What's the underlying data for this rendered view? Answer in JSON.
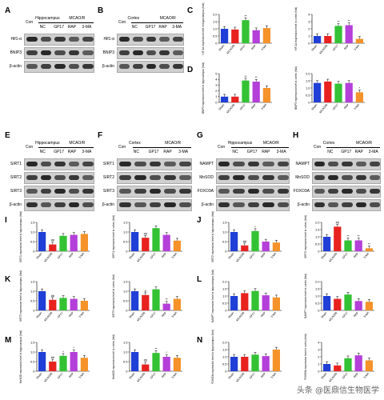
{
  "panel_letters": [
    "A",
    "B",
    "C",
    "D",
    "E",
    "F",
    "G",
    "H",
    "I",
    "J",
    "K",
    "L",
    "M",
    "N"
  ],
  "blots": {
    "A": {
      "region": "Hippocampus",
      "model": "MCAO/R",
      "lanes": [
        "Con",
        "NC",
        "GP17",
        "RAP",
        "3-MA"
      ],
      "rows": [
        "Hif1-α",
        "BNIP3",
        "β-actin"
      ]
    },
    "B": {
      "region": "Cortex",
      "model": "MCAO/R",
      "lanes": [
        "Con",
        "NC",
        "GP17",
        "RAP",
        "3-MA"
      ],
      "rows": [
        "Hif1-α",
        "BNIP3",
        "β-actin"
      ]
    },
    "E": {
      "region": "Hippocampus",
      "model": "MCAO/R",
      "lanes": [
        "Con",
        "NC",
        "GP17",
        "RAP",
        "3-MA"
      ],
      "rows": [
        "SIRT1",
        "SIRT2",
        "SIRT3",
        "β-actin"
      ]
    },
    "F": {
      "region": "Cortex",
      "model": "MCAO/R",
      "lanes": [
        "Con",
        "NC",
        "GP17",
        "RAP",
        "3-MA"
      ],
      "rows": [
        "SIRT1",
        "SIRT2",
        "SIRT3",
        "β-actin"
      ]
    },
    "G": {
      "region": "Hippocampus",
      "model": "MCAO/R",
      "lanes": [
        "Con",
        "NC",
        "GP17",
        "RAP",
        "3-MA"
      ],
      "rows": [
        "NAMPT",
        "MnSOD",
        "FOXO3A",
        "β-actin"
      ]
    },
    "H": {
      "region": "Cortex",
      "model": "MCAO/R",
      "lanes": [
        "Con",
        "NC",
        "GP17",
        "RAP",
        "3-MA"
      ],
      "rows": [
        "NAMPT",
        "MnSOD",
        "FOXO3A",
        "β-actin"
      ]
    }
  },
  "colors": [
    "#1f3fd6",
    "#e8221f",
    "#33c233",
    "#b43fd9",
    "#f5922a"
  ],
  "chart_data": [
    {
      "type": "bar",
      "panel": "C",
      "ylabel": "HIF-1α expression level in hippocampus (fold)",
      "categories": [
        "Sham",
        "MCAO/R",
        "GP17",
        "RAP",
        "3-MA"
      ],
      "values": [
        1.0,
        0.95,
        1.6,
        0.9,
        1.05
      ],
      "ylim": [
        0,
        2
      ],
      "yticks": [
        "0",
        "0.5",
        "1.0",
        "1.5",
        "2.0"
      ],
      "annotations": [
        "",
        "",
        "**",
        "",
        ""
      ]
    },
    {
      "type": "bar",
      "panel": "C",
      "ylabel": "HIF-1α expression level in cortex (fold)",
      "categories": [
        "Sham",
        "MCAO/R",
        "GP17",
        "RAP",
        "3-MA"
      ],
      "values": [
        1.0,
        1.0,
        2.4,
        2.5,
        0.6
      ],
      "ylim": [
        0,
        4
      ],
      "yticks": [
        "0",
        "1",
        "2",
        "3",
        "4"
      ],
      "annotations": [
        "",
        "",
        "**",
        "**",
        ""
      ]
    },
    {
      "type": "bar",
      "panel": "D",
      "ylabel": "BNIP3 expression level in hippocampus (fold)",
      "categories": [
        "Sham",
        "MCAO/R",
        "GP17",
        "RAP",
        "3-MA"
      ],
      "values": [
        1.0,
        1.0,
        3.8,
        3.6,
        2.5
      ],
      "ylim": [
        0,
        5
      ],
      "yticks": [
        "0",
        "1",
        "2",
        "3",
        "4",
        "5"
      ],
      "annotations": [
        "",
        "",
        "**",
        "**",
        ""
      ]
    },
    {
      "type": "bar",
      "panel": "D",
      "ylabel": "BNIP3 expression level in cortex (fold)",
      "categories": [
        "Sham",
        "MCAO/R",
        "GP17",
        "RAP",
        "3-MA"
      ],
      "values": [
        1.35,
        1.45,
        1.3,
        1.35,
        0.7
      ],
      "ylim": [
        0,
        2
      ],
      "yticks": [
        "0",
        "0.5",
        "1.0",
        "1.5",
        "2.0"
      ],
      "annotations": [
        "",
        "",
        "",
        "",
        "*"
      ]
    },
    {
      "type": "bar",
      "panel": "I",
      "ylabel": "SIRT1 expression level in hippocampus (fold)",
      "categories": [
        "Sham",
        "MCAO/R",
        "GP17",
        "RAP",
        "3-MA"
      ],
      "values": [
        1.0,
        0.35,
        0.8,
        0.85,
        0.9
      ],
      "ylim": [
        0,
        1.5
      ],
      "yticks": [
        "0",
        "0.5",
        "1.0",
        "1.5"
      ],
      "annotations": [
        "",
        "##",
        "",
        "",
        ""
      ]
    },
    {
      "type": "bar",
      "panel": "I",
      "ylabel": "SIRT1 expression level in cortex (fold)",
      "categories": [
        "Sham",
        "MCAO/R",
        "GP17",
        "RAP",
        "3-MA"
      ],
      "values": [
        1.0,
        0.7,
        1.2,
        0.85,
        0.55
      ],
      "ylim": [
        0,
        1.5
      ],
      "yticks": [
        "0",
        "0.5",
        "1.0",
        "1.5"
      ],
      "annotations": [
        "",
        "##",
        "",
        "",
        ""
      ]
    },
    {
      "type": "bar",
      "panel": "J",
      "ylabel": "SIRT2 expression level in hippocampus (fold)",
      "categories": [
        "Sham",
        "MCAO/R",
        "GP17",
        "RAP",
        "3-MA"
      ],
      "values": [
        1.0,
        0.3,
        1.05,
        0.5,
        0.45
      ],
      "ylim": [
        0,
        1.5
      ],
      "yticks": [
        "0",
        "0.5",
        "1.0",
        "1.5"
      ],
      "annotations": [
        "",
        "##",
        "*",
        "",
        ""
      ]
    },
    {
      "type": "bar",
      "panel": "J",
      "ylabel": "SIRT2 expression level in cortex (fold)",
      "categories": [
        "Sham",
        "MCAO/R",
        "GP17",
        "RAP",
        "3-MA"
      ],
      "values": [
        1.0,
        1.7,
        0.75,
        0.75,
        0.2
      ],
      "ylim": [
        0,
        2
      ],
      "yticks": [
        "0",
        "0.5",
        "1.0",
        "1.5",
        "2.0"
      ],
      "annotations": [
        "",
        "##",
        "**",
        "**",
        "**"
      ]
    },
    {
      "type": "bar",
      "panel": "K",
      "ylabel": "SIRT3 expression level in hippocampus (fold)",
      "categories": [
        "Sham",
        "MCAO/R",
        "GP17",
        "RAP",
        "3-MA"
      ],
      "values": [
        1.0,
        0.55,
        0.65,
        0.6,
        0.5
      ],
      "ylim": [
        0,
        1.5
      ],
      "yticks": [
        "0",
        "0.5",
        "1.0",
        "1.5"
      ],
      "annotations": [
        "",
        "##",
        "",
        "",
        ""
      ]
    },
    {
      "type": "bar",
      "panel": "K",
      "ylabel": "SIRT3 expression level in cortex (fold)",
      "categories": [
        "Sham",
        "MCAO/R",
        "GP17",
        "RAP",
        "3-MA"
      ],
      "values": [
        1.0,
        0.8,
        1.1,
        0.35,
        0.6
      ],
      "ylim": [
        0,
        1.5
      ],
      "yticks": [
        "0",
        "0.5",
        "1.0",
        "1.5"
      ],
      "annotations": [
        "",
        "#",
        "",
        "**",
        ""
      ]
    },
    {
      "type": "bar",
      "panel": "L",
      "ylabel": "NAMPT expression level in hippocampus (fold)",
      "categories": [
        "Sham",
        "MCAO/R",
        "GP17",
        "RAP",
        "3-MA"
      ],
      "values": [
        1.0,
        1.2,
        1.35,
        1.05,
        0.9
      ],
      "ylim": [
        0,
        2
      ],
      "yticks": [
        "0",
        "0.5",
        "1.0",
        "1.5",
        "2.0"
      ],
      "annotations": [
        "",
        "",
        "",
        "",
        ""
      ]
    },
    {
      "type": "bar",
      "panel": "L",
      "ylabel": "NAMPT expression level in cortex (fold)",
      "categories": [
        "Sham",
        "MCAO/R",
        "GP17",
        "RAP",
        "3-MA"
      ],
      "values": [
        1.0,
        0.8,
        1.1,
        0.65,
        0.6
      ],
      "ylim": [
        0,
        2
      ],
      "yticks": [
        "0",
        "0.5",
        "1.0",
        "1.5",
        "2.0"
      ],
      "annotations": [
        "",
        "",
        "",
        "",
        ""
      ]
    },
    {
      "type": "bar",
      "panel": "M",
      "ylabel": "MnSOD expression level in hippocampus (fold)",
      "categories": [
        "Sham",
        "MCAO/R",
        "GP17",
        "RAP",
        "3-MA"
      ],
      "values": [
        1.0,
        0.5,
        0.8,
        1.0,
        0.7
      ],
      "ylim": [
        0,
        1.5
      ],
      "yticks": [
        "0",
        "0.5",
        "1.0",
        "1.5"
      ],
      "annotations": [
        "",
        "##",
        "*",
        "*",
        ""
      ]
    },
    {
      "type": "bar",
      "panel": "M",
      "ylabel": "MnSOD expression level in cortex (fold)",
      "categories": [
        "Sham",
        "MCAO/R",
        "GP17",
        "RAP",
        "3-MA"
      ],
      "values": [
        1.0,
        0.35,
        0.95,
        0.75,
        0.7
      ],
      "ylim": [
        0,
        1.5
      ],
      "yticks": [
        "0",
        "0.5",
        "1.0",
        "1.5"
      ],
      "annotations": [
        "",
        "##",
        "**",
        "*",
        ""
      ]
    },
    {
      "type": "bar",
      "panel": "N",
      "ylabel": "FOXO3a expression level in hippocampus (fold)",
      "categories": [
        "Sham",
        "MCAO/R",
        "GP17",
        "RAP",
        "3-MA"
      ],
      "values": [
        1.0,
        1.0,
        1.15,
        1.05,
        1.5
      ],
      "ylim": [
        0,
        2
      ],
      "yticks": [
        "0",
        "0.5",
        "1.0",
        "1.5",
        "2.0"
      ],
      "annotations": [
        "",
        "",
        "",
        "",
        ""
      ]
    },
    {
      "type": "bar",
      "panel": "N",
      "ylabel": "FOXO3a expression level in cortex (fold)",
      "categories": [
        "Sham",
        "MCAO/R",
        "GP17",
        "RAP",
        "3-MA"
      ],
      "values": [
        1.0,
        0.8,
        1.8,
        2.2,
        1.5
      ],
      "ylim": [
        0,
        4
      ],
      "yticks": [
        "0",
        "1",
        "2",
        "3",
        "4"
      ],
      "annotations": [
        "",
        "",
        "",
        "",
        ""
      ]
    }
  ],
  "watermark": "头条 @医鼎信生物医学"
}
